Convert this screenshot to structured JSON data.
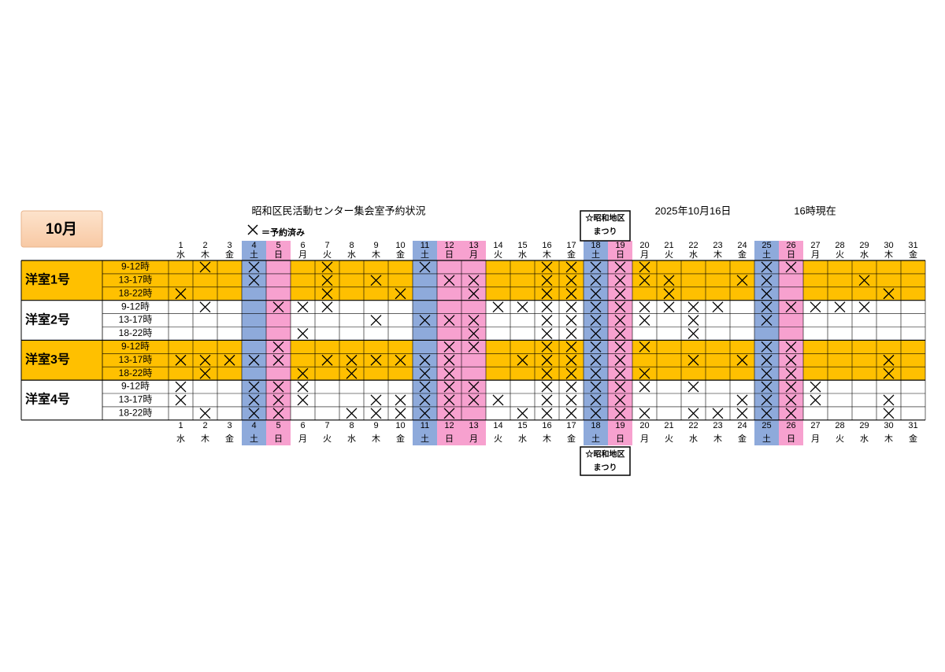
{
  "month_label": "10月",
  "title": "昭和区民活動センター集会室予約状況",
  "date": "2025年10月16日",
  "time": "16時現在",
  "legend": "＝予約済み",
  "event_note": {
    "line1": "☆昭和地区",
    "line2": "まつり",
    "day": 18
  },
  "colors": {
    "booked_row": "#ffc000",
    "saturday": "#8eaadb",
    "holiday": "#f7a1cf"
  },
  "saturdays": [
    4,
    11,
    18,
    25
  ],
  "holidays": [
    5,
    12,
    13,
    19,
    26
  ],
  "days": [
    {
      "d": "1",
      "w": "水"
    },
    {
      "d": "2",
      "w": "木"
    },
    {
      "d": "3",
      "w": "金"
    },
    {
      "d": "4",
      "w": "土"
    },
    {
      "d": "5",
      "w": "日"
    },
    {
      "d": "6",
      "w": "月"
    },
    {
      "d": "7",
      "w": "火"
    },
    {
      "d": "8",
      "w": "水"
    },
    {
      "d": "9",
      "w": "木"
    },
    {
      "d": "10",
      "w": "金"
    },
    {
      "d": "11",
      "w": "土"
    },
    {
      "d": "12",
      "w": "日"
    },
    {
      "d": "13",
      "w": "月"
    },
    {
      "d": "14",
      "w": "火"
    },
    {
      "d": "15",
      "w": "水"
    },
    {
      "d": "16",
      "w": "木"
    },
    {
      "d": "17",
      "w": "金"
    },
    {
      "d": "18",
      "w": "土"
    },
    {
      "d": "19",
      "w": "日"
    },
    {
      "d": "20",
      "w": "月"
    },
    {
      "d": "21",
      "w": "火"
    },
    {
      "d": "22",
      "w": "水"
    },
    {
      "d": "23",
      "w": "木"
    },
    {
      "d": "24",
      "w": "金"
    },
    {
      "d": "25",
      "w": "土"
    },
    {
      "d": "26",
      "w": "日"
    },
    {
      "d": "27",
      "w": "月"
    },
    {
      "d": "28",
      "w": "火"
    },
    {
      "d": "29",
      "w": "水"
    },
    {
      "d": "30",
      "w": "木"
    },
    {
      "d": "31",
      "w": "金"
    }
  ],
  "rooms": [
    {
      "name": "洋室1号",
      "highlight": true,
      "slots": [
        {
          "time": "9-12時",
          "booked": [
            2,
            4,
            7,
            11,
            16,
            17,
            18,
            19,
            20,
            25,
            26
          ]
        },
        {
          "time": "13-17時",
          "booked": [
            4,
            7,
            9,
            12,
            13,
            16,
            17,
            18,
            19,
            20,
            21,
            24,
            25,
            29
          ]
        },
        {
          "time": "18-22時",
          "booked": [
            1,
            7,
            10,
            13,
            16,
            17,
            18,
            19,
            21,
            25,
            30
          ]
        }
      ]
    },
    {
      "name": "洋室2号",
      "highlight": false,
      "slots": [
        {
          "time": "9-12時",
          "booked": [
            2,
            5,
            6,
            7,
            14,
            15,
            16,
            17,
            18,
            19,
            20,
            21,
            22,
            23,
            25,
            26,
            27,
            28,
            29
          ]
        },
        {
          "time": "13-17時",
          "booked": [
            9,
            11,
            12,
            13,
            16,
            17,
            18,
            19,
            20,
            22,
            25
          ]
        },
        {
          "time": "18-22時",
          "booked": [
            6,
            13,
            16,
            17,
            18,
            19,
            22
          ]
        }
      ]
    },
    {
      "name": "洋室3号",
      "highlight": true,
      "slots": [
        {
          "time": "9-12時",
          "booked": [
            5,
            12,
            13,
            16,
            17,
            18,
            19,
            20,
            25,
            26
          ]
        },
        {
          "time": "13-17時",
          "booked": [
            1,
            2,
            3,
            4,
            5,
            7,
            8,
            9,
            10,
            11,
            12,
            15,
            16,
            17,
            18,
            19,
            22,
            24,
            25,
            26,
            30
          ]
        },
        {
          "time": "18-22時",
          "booked": [
            2,
            6,
            8,
            11,
            12,
            16,
            17,
            18,
            19,
            20,
            25,
            26,
            30
          ]
        }
      ]
    },
    {
      "name": "洋室4号",
      "highlight": false,
      "slots": [
        {
          "time": "9-12時",
          "booked": [
            1,
            4,
            5,
            6,
            11,
            12,
            13,
            16,
            17,
            18,
            19,
            20,
            22,
            25,
            26,
            27
          ]
        },
        {
          "time": "13-17時",
          "booked": [
            1,
            4,
            5,
            6,
            9,
            10,
            11,
            12,
            13,
            14,
            16,
            17,
            18,
            19,
            24,
            25,
            26,
            27,
            30
          ]
        },
        {
          "time": "18-22時",
          "booked": [
            2,
            4,
            5,
            8,
            9,
            10,
            11,
            12,
            15,
            16,
            17,
            18,
            19,
            20,
            22,
            23,
            24,
            25,
            26,
            30
          ]
        }
      ]
    }
  ]
}
